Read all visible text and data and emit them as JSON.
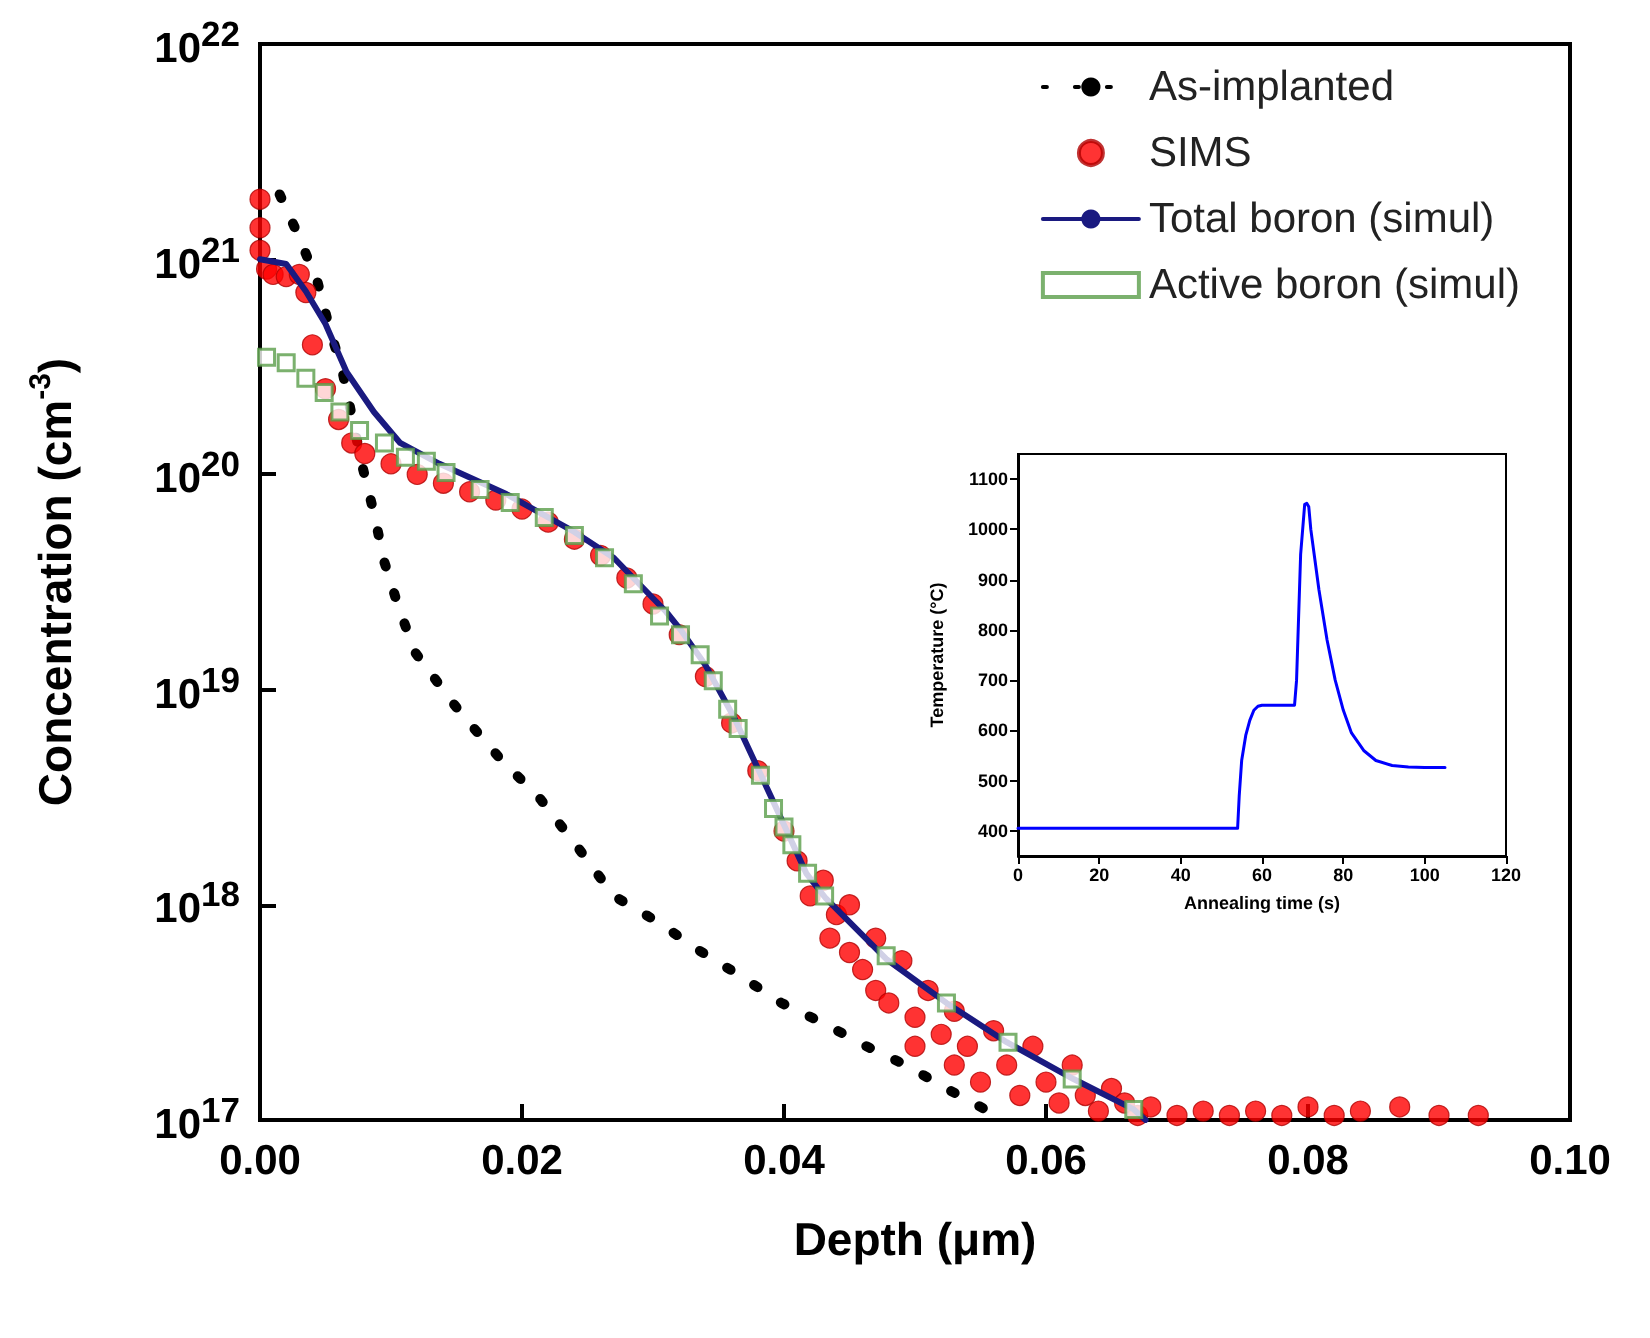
{
  "chart_data": [
    {
      "type": "line",
      "xlabel": "Depth (μm)",
      "ylabel": "Concentration (cm$^{-3}$)",
      "log": "y",
      "legend": "top right",
      "xlim": [
        0,
        0.1
      ],
      "xticks": [
        {
          "value": 0,
          "label": "0.00"
        },
        {
          "value": 0.02,
          "label": "0.02"
        },
        {
          "value": 0.04,
          "label": "0.04"
        },
        {
          "value": 0.06,
          "label": "0.06"
        },
        {
          "value": 0.08,
          "label": "0.08"
        },
        {
          "value": 0.1,
          "label": "0.10"
        }
      ],
      "ylim": [
        1e+17,
        1e+22
      ],
      "yticks": [
        {
          "value": 1e+17,
          "label": "10$^{17}$"
        },
        {
          "value": 1e+18,
          "label": "10$^{18}$"
        },
        {
          "value": 1e+19,
          "label": "10$^{19}$"
        },
        {
          "value": 1e+20,
          "label": "10$^{20}$"
        },
        {
          "value": 1e+21,
          "label": "10$^{21}$"
        },
        {
          "value": 1e+22,
          "label": "10$^{22}$"
        }
      ],
      "series": [
        {
          "name": "As-implanted",
          "type": "line",
          "line_style": "dotted",
          "marker": "none",
          "color": "#000000",
          "x": [
            0.0015,
            0.0029,
            0.0044,
            0.0053,
            0.0063,
            0.0078,
            0.0087,
            0.0095,
            0.0105,
            0.0118,
            0.0153,
            0.0183,
            0.0214,
            0.0244,
            0.027,
            0.0304,
            0.0334,
            0.0366,
            0.0398,
            0.0431,
            0.0463,
            0.0493,
            0.0524,
            0.0556
          ],
          "values": [
            2e+21,
            1.3e+21,
            7.8e+20,
            4.8e+20,
            3e+20,
            1.1e+20,
            6.6e+19,
            3.9e+19,
            2.5e+19,
            1.5e+19,
            7.8e+18,
            4.8e+18,
            3.1e+18,
            1.8e+18,
            1.1e+18,
            8.3e+17,
            6.2e+17,
            4.7e+17,
            3.5e+17,
            2.8e+17,
            2.2e+17,
            1.8e+17,
            1.4e+17,
            1.1e+17
          ]
        },
        {
          "name": "SIMS",
          "type": "scatter",
          "marker": "circle",
          "color": "#ff0000",
          "x": [
            0,
            0,
            0,
            0.0005,
            0.001,
            0.002,
            0.003,
            0.0035,
            0.004,
            0.005,
            0.006,
            0.007,
            0.008,
            0.01,
            0.012,
            0.014,
            0.016,
            0.018,
            0.02,
            0.022,
            0.024,
            0.026,
            0.028,
            0.03,
            0.032,
            0.034,
            0.036,
            0.038,
            0.04,
            0.041,
            0.042,
            0.043,
            0.0435,
            0.044,
            0.045,
            0.045,
            0.046,
            0.047,
            0.047,
            0.048,
            0.049,
            0.05,
            0.05,
            0.051,
            0.052,
            0.053,
            0.053,
            0.054,
            0.055,
            0.056,
            0.057,
            0.058,
            0.059,
            0.06,
            0.061,
            0.062,
            0.063,
            0.064,
            0.065,
            0.066,
            0.067,
            0.068,
            0.07,
            0.072,
            0.074,
            0.076,
            0.078,
            0.08,
            0.082,
            0.084,
            0.087,
            0.09,
            0.093
          ],
          "values": [
            1.9e+21,
            1.4e+21,
            1.1e+21,
            9e+20,
            8.5e+20,
            8.3e+20,
            8.5e+20,
            7e+20,
            4e+20,
            2.5e+20,
            1.8e+20,
            1.4e+20,
            1.25e+20,
            1.12e+20,
            1e+20,
            9.1e+19,
            8.3e+19,
            7.6e+19,
            6.9e+19,
            6e+19,
            5e+19,
            4.2e+19,
            3.3e+19,
            2.5e+19,
            1.8e+19,
            1.15e+19,
            7e+18,
            4.2e+18,
            2.2e+18,
            1.6e+18,
            1.1e+18,
            1.3e+18,
            7e+17,
            9e+17,
            6e+17,
            1e+18,
            5e+17,
            7e+17,
            4e+17,
            3.5e+17,
            5.5e+17,
            3e+17,
            2.2e+17,
            4e+17,
            2.5e+17,
            3.2e+17,
            1.8e+17,
            2.2e+17,
            1.5e+17,
            2.6e+17,
            1.8e+17,
            1.3e+17,
            2.2e+17,
            1.5e+17,
            1.2e+17,
            1.8e+17,
            1.3e+17,
            1.1e+17,
            1.4e+17,
            1.2e+17,
            1.05e+17,
            1.15e+17,
            1.05e+17,
            1.1e+17,
            1.05e+17,
            1.1e+17,
            1.05e+17,
            1.15e+17,
            1.05e+17,
            1.1e+17,
            1.15e+17,
            1.05e+17,
            1.05e+17
          ]
        },
        {
          "name": "Total boron (simul)",
          "type": "line",
          "line_style": "solid",
          "marker": "none",
          "color": "#1a1a80",
          "x": [
            0,
            0.002,
            0.0035,
            0.005,
            0.0066,
            0.0087,
            0.0107,
            0.0137,
            0.0188,
            0.024,
            0.027,
            0.031,
            0.0321,
            0.034,
            0.0362,
            0.0392,
            0.0417,
            0.0432,
            0.0478,
            0.0524,
            0.057,
            0.0621,
            0.0667,
            0.0676
          ],
          "values": [
            1e+21,
            9.5e+20,
            7.1e+20,
            5e+20,
            3e+20,
            1.95e+20,
            1.4e+20,
            1.12e+20,
            8.1e+19,
            5.4e+19,
            4.1e+19,
            2.3e+19,
            1.9e+19,
            1.3e+19,
            7.4e+18,
            3e+18,
            1.4e+18,
            1.07e+18,
            5.6e+17,
            3.5e+17,
            2.3e+17,
            1.55e+17,
            1.12e+17,
            1e+17
          ]
        },
        {
          "name": "Active boron (simul)",
          "type": "scatter",
          "marker": "square",
          "color": "#5a9e4a",
          "x": [
            0.0005,
            0.002,
            0.0035,
            0.0049,
            0.0061,
            0.0076,
            0.0095,
            0.0111,
            0.0127,
            0.0142,
            0.0168,
            0.0191,
            0.0217,
            0.024,
            0.0263,
            0.0285,
            0.0305,
            0.0321,
            0.0336,
            0.0346,
            0.0357,
            0.0365,
            0.0382,
            0.0392,
            0.04,
            0.0406,
            0.0418,
            0.0431,
            0.0478,
            0.0524,
            0.0571,
            0.062,
            0.0667
          ],
          "values": [
            3.5e+20,
            3.3e+20,
            2.8e+20,
            2.4e+20,
            1.95e+20,
            1.6e+20,
            1.4e+20,
            1.2e+20,
            1.15e+20,
            1.02e+20,
            8.5e+19,
            7.4e+19,
            6.3e+19,
            5.2e+19,
            4.1e+19,
            3.1e+19,
            2.2e+19,
            1.8e+19,
            1.45e+19,
            1.1e+19,
            8.1e+18,
            6.6e+18,
            4e+18,
            2.8e+18,
            2.3e+18,
            1.9e+18,
            1.4e+18,
            1.1e+18,
            5.8e+17,
            3.5e+17,
            2.3e+17,
            1.55e+17,
            1.12e+17
          ]
        }
      ]
    },
    {
      "type": "line",
      "xlabel": "Annealing time (s)",
      "ylabel": "Temperature (°C)",
      "xlim": [
        0,
        120
      ],
      "xticks": [
        0,
        20,
        40,
        60,
        80,
        100,
        120
      ],
      "ylim": [
        350,
        1150
      ],
      "yticks": [
        400,
        500,
        600,
        700,
        800,
        900,
        1000,
        1100
      ],
      "series": [
        {
          "color": "#0000ff",
          "x": [
            0,
            54,
            54.4,
            55,
            56,
            57,
            58,
            59,
            60,
            68,
            68.5,
            69.5,
            70.5,
            71,
            71.5,
            72,
            73,
            74,
            76,
            78,
            80,
            82,
            85,
            88,
            92,
            96,
            100,
            105
          ],
          "values": [
            405,
            405,
            470,
            540,
            590,
            620,
            640,
            648,
            650,
            650,
            700,
            950,
            1050,
            1052,
            1045,
            1000,
            940,
            880,
            780,
            700,
            640,
            595,
            560,
            540,
            530,
            527,
            526,
            526
          ]
        }
      ]
    }
  ]
}
